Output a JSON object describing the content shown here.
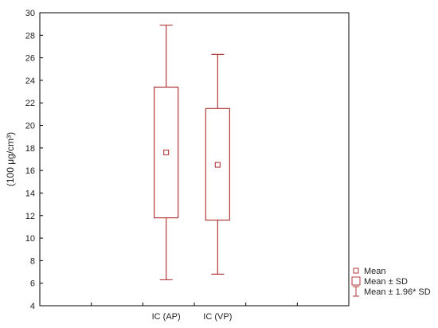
{
  "chart_data": {
    "type": "boxplot",
    "ylabel": "(100 μg/cm³)",
    "ylim": [
      4,
      30
    ],
    "yticks": [
      4,
      6,
      8,
      10,
      12,
      14,
      16,
      18,
      20,
      22,
      24,
      26,
      28,
      30
    ],
    "categories": [
      "IC (AP)",
      "IC (VP)"
    ],
    "series": [
      {
        "category": "IC (AP)",
        "mean": 17.6,
        "sd_low": 11.8,
        "sd_high": 23.4,
        "whisker_low": 6.3,
        "whisker_high": 28.9
      },
      {
        "category": "IC (VP)",
        "mean": 16.5,
        "sd_low": 11.6,
        "sd_high": 21.5,
        "whisker_low": 6.8,
        "whisker_high": 26.3
      }
    ],
    "legend": {
      "position": "bottom-right",
      "items": [
        {
          "marker": "small-square",
          "label": "Mean"
        },
        {
          "marker": "box",
          "label": "Mean ± SD"
        },
        {
          "marker": "whisker",
          "label": "Mean ± 1.96* SD"
        }
      ]
    },
    "colors": {
      "series": "#b33a3a",
      "axis": "#000000"
    },
    "grid": false
  }
}
